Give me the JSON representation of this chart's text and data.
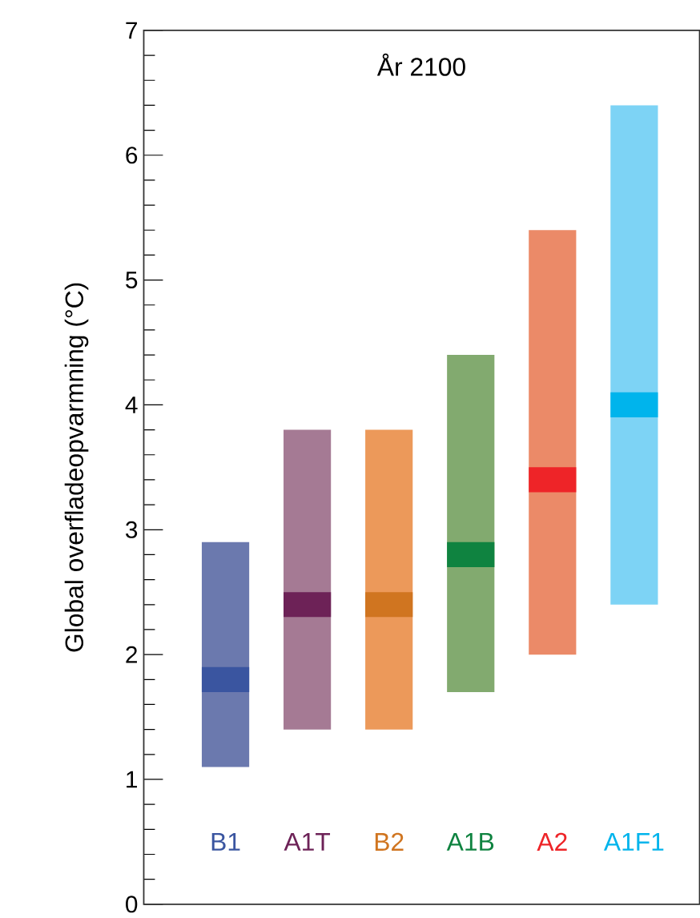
{
  "chart_data": {
    "type": "bar",
    "title": "År 2100",
    "ylabel": "Global overfladeopvarmning (°C)",
    "categories": [
      "B1",
      "A1T",
      "B2",
      "A1B",
      "A2",
      "A1F1"
    ],
    "series": [
      {
        "colors": [
          "#6b79ae",
          "#a57a94",
          "#ec995a",
          "#82aa6f",
          "#eb8a68",
          "#7dd3f5"
        ],
        "base": [
          1.1,
          1.4,
          1.4,
          1.7,
          2.0,
          2.4
        ],
        "values": [
          1.8,
          2.4,
          2.4,
          2.7,
          3.4,
          4.0
        ]
      },
      {
        "colors": [
          "#3a55a0",
          "#6d2257",
          "#d07520",
          "#0f8340",
          "#ee2428",
          "#00b4ec"
        ],
        "base": [
          1.7,
          2.3,
          2.3,
          2.7,
          3.3,
          3.9
        ],
        "values": [
          0.2,
          0.2,
          0.2,
          0.2,
          0.2,
          0.2
        ]
      }
    ],
    "ylim": [
      0,
      7
    ],
    "yticks": [
      0,
      1,
      2,
      3,
      4,
      5,
      6,
      7
    ]
  }
}
